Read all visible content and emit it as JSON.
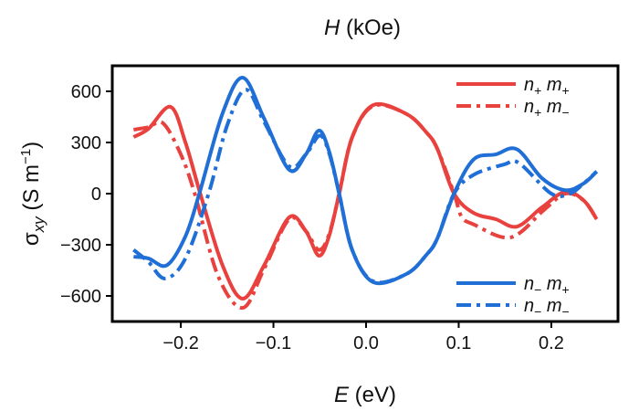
{
  "chart_data": {
    "type": "line",
    "title": "H (kOe)",
    "title_italic_part": "H",
    "title_rest": " (kOe)",
    "xlabel_var": "E",
    "xlabel_unit": " (eV)",
    "ylabel_var": "σ",
    "ylabel_sub": "xy",
    "ylabel_unit": " (S m",
    "ylabel_sup": "−1",
    "ylabel_close": ")",
    "xlim": [
      -0.274,
      0.272
    ],
    "ylim": [
      -750,
      750
    ],
    "xticks": [
      -0.2,
      -0.1,
      0.0,
      0.1,
      0.2
    ],
    "xtick_labels": [
      "−0.2",
      "−0.1",
      "0.0",
      "0.1",
      "0.2"
    ],
    "yticks": [
      600,
      300,
      0,
      -300,
      -600
    ],
    "ytick_labels": [
      "600",
      "300",
      "0",
      "−300",
      "−600"
    ],
    "grid": false,
    "series": [
      {
        "name": "n+ m+",
        "label_n": "n",
        "sub_n": "+",
        "label_m": "m",
        "sub_m": "+",
        "color": "#e8413e",
        "style": "solid",
        "legend": "top-right",
        "x": [
          -0.251,
          -0.235,
          -0.211,
          -0.195,
          -0.179,
          -0.155,
          -0.133,
          -0.11,
          -0.083,
          -0.065,
          -0.051,
          -0.04,
          -0.029,
          -0.015,
          0.008,
          0.044,
          0.065,
          0.077,
          0.095,
          0.116,
          0.14,
          0.163,
          0.19,
          0.215,
          0.235,
          0.249
        ],
        "y": [
          332,
          380,
          509,
          300,
          0,
          -420,
          -616,
          -420,
          -139,
          -220,
          -364,
          -250,
          0,
          330,
          520,
          466,
          360,
          262,
          0,
          -113,
          -150,
          -193,
          -80,
          11,
          -40,
          -150
        ]
      },
      {
        "name": "n+ m−",
        "label_n": "n",
        "sub_n": "+",
        "label_m": "m",
        "sub_m": "−",
        "color": "#e8413e",
        "style": "dashdot",
        "legend": "top-right",
        "x": [
          -0.251,
          -0.235,
          -0.219,
          -0.2,
          -0.185,
          -0.16,
          -0.133,
          -0.11,
          -0.083,
          -0.065,
          -0.051,
          -0.04,
          -0.029,
          -0.015,
          0.008,
          0.044,
          0.065,
          0.077,
          0.095,
          0.103,
          0.116,
          0.156,
          0.192,
          0.215,
          0.235,
          0.249
        ],
        "y": [
          375,
          390,
          412,
          230,
          0,
          -480,
          -670,
          -440,
          -150,
          -220,
          -330,
          -240,
          0,
          330,
          515,
          466,
          360,
          262,
          0,
          -134,
          -180,
          -257,
          -96,
          0,
          -40,
          -150
        ]
      },
      {
        "name": "n− m+",
        "label_n": "n",
        "sub_n": "−",
        "label_m": "m",
        "sub_m": "+",
        "color": "#1f6fd6",
        "style": "solid",
        "legend": "bottom-right",
        "x": [
          -0.251,
          -0.235,
          -0.215,
          -0.195,
          -0.18,
          -0.155,
          -0.133,
          -0.11,
          -0.083,
          -0.065,
          -0.051,
          -0.04,
          -0.029,
          -0.015,
          0.008,
          0.044,
          0.065,
          0.077,
          0.095,
          0.116,
          0.14,
          0.163,
          0.19,
          0.215,
          0.235,
          0.249
        ],
        "y": [
          -370,
          -380,
          -420,
          -250,
          0,
          470,
          680,
          440,
          140,
          230,
          370,
          250,
          0,
          -330,
          -520,
          -470,
          -360,
          -262,
          0,
          200,
          230,
          260,
          90,
          20,
          60,
          130
        ]
      },
      {
        "name": "n− m−",
        "label_n": "n",
        "sub_n": "−",
        "label_m": "m",
        "sub_m": "−",
        "color": "#1f6fd6",
        "style": "dashdot",
        "legend": "bottom-right",
        "x": [
          -0.251,
          -0.235,
          -0.217,
          -0.195,
          -0.17,
          -0.15,
          -0.13,
          -0.11,
          -0.083,
          -0.065,
          -0.05,
          -0.04,
          -0.029,
          -0.015,
          0.008,
          0.044,
          0.065,
          0.077,
          0.095,
          0.116,
          0.149,
          0.165,
          0.2,
          0.22,
          0.235,
          0.249
        ],
        "y": [
          -330,
          -400,
          -498,
          -380,
          0,
          400,
          610,
          420,
          160,
          230,
          340,
          240,
          0,
          -330,
          -515,
          -470,
          -360,
          -262,
          0,
          110,
          171,
          180,
          0,
          0,
          60,
          130
        ]
      }
    ]
  }
}
